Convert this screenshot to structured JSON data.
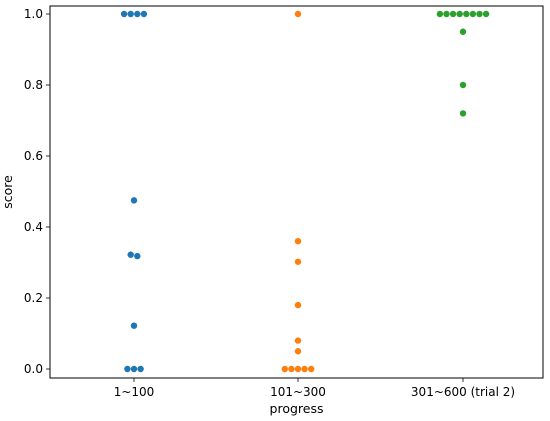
{
  "chart_data": {
    "type": "scatter",
    "subtype": "swarm",
    "title": "",
    "xlabel": "progress",
    "ylabel": "score",
    "ylim": [
      -0.03,
      1.03
    ],
    "yticks": [
      "0.0",
      "0.2",
      "0.4",
      "0.6",
      "0.8",
      "1.0"
    ],
    "grid": false,
    "categories": [
      "1~100",
      "101~300",
      "301~600 (trial 2)"
    ],
    "series": [
      {
        "category": "1~100",
        "color": "#1f77b4",
        "values": [
          1.0,
          1.0,
          1.0,
          1.0,
          0.475,
          0.322,
          0.318,
          0.122,
          0.0,
          0.0,
          0.0
        ]
      },
      {
        "category": "101~300",
        "color": "#ff7f0e",
        "values": [
          1.0,
          0.36,
          0.302,
          0.18,
          0.08,
          0.05,
          0.0,
          0.0,
          0.0,
          0.0,
          0.0
        ]
      },
      {
        "category": "301~600 (trial 2)",
        "color": "#2ca02c",
        "values": [
          1.0,
          1.0,
          1.0,
          1.0,
          1.0,
          1.0,
          1.0,
          1.0,
          0.95,
          0.8,
          0.72
        ]
      }
    ]
  }
}
